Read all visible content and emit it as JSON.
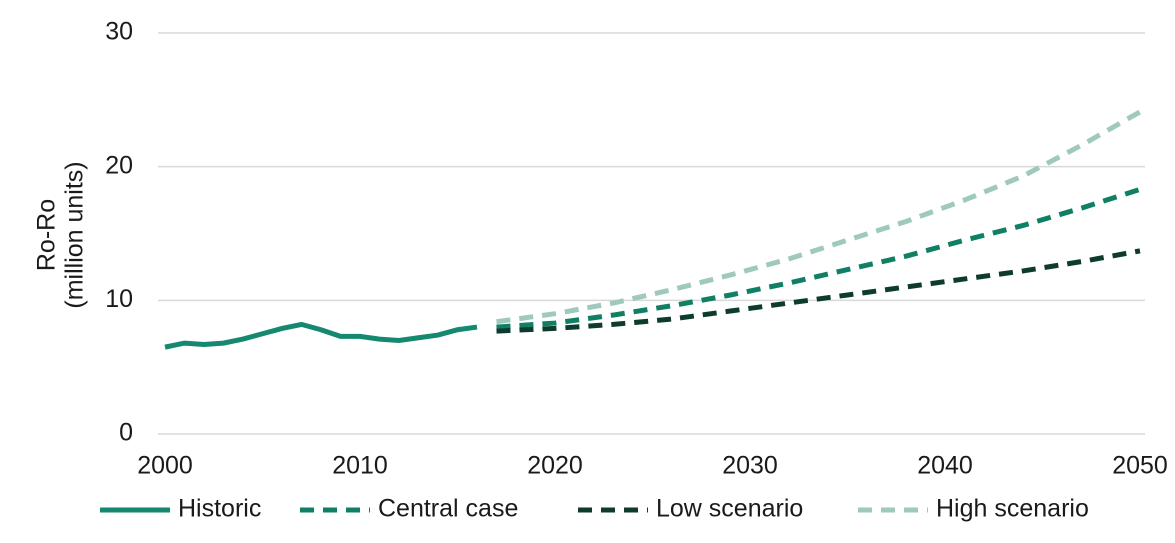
{
  "chart_data": {
    "type": "line",
    "ylabel": [
      "Ro-Ro",
      "(million units)"
    ],
    "xlim": [
      2000,
      2050
    ],
    "xticks": [
      2000,
      2010,
      2020,
      2030,
      2040,
      2050
    ],
    "ylim": [
      0,
      30
    ],
    "yticks": [
      0,
      10,
      20,
      30
    ],
    "grid": true,
    "legend": "bottom",
    "series": [
      {
        "name": "Historic",
        "color": "#14896f",
        "dashed": false,
        "x": [
          2000,
          2001,
          2002,
          2003,
          2004,
          2005,
          2006,
          2007,
          2008,
          2009,
          2010,
          2011,
          2012,
          2013,
          2014,
          2015,
          2016
        ],
        "values": [
          6.5,
          6.8,
          6.7,
          6.8,
          7.1,
          7.5,
          7.9,
          8.2,
          7.8,
          7.3,
          7.3,
          7.1,
          7.0,
          7.2,
          7.4,
          7.8,
          8.0
        ]
      },
      {
        "name": "Central case",
        "color": "#0f8065",
        "dashed": true,
        "x": [
          2017,
          2020,
          2023,
          2026,
          2029,
          2032,
          2035,
          2038,
          2041,
          2044,
          2047,
          2050
        ],
        "values": [
          8.0,
          8.3,
          8.9,
          9.6,
          10.4,
          11.3,
          12.3,
          13.3,
          14.5,
          15.6,
          16.9,
          18.3
        ]
      },
      {
        "name": "Low scenario",
        "color": "#0d3b2e",
        "dashed": true,
        "x": [
          2017,
          2020,
          2023,
          2026,
          2029,
          2032,
          2035,
          2038,
          2041,
          2044,
          2047,
          2050
        ],
        "values": [
          7.7,
          7.9,
          8.2,
          8.6,
          9.2,
          9.8,
          10.4,
          11.0,
          11.6,
          12.2,
          12.9,
          13.7
        ]
      },
      {
        "name": "High scenario",
        "color": "#9fc9bd",
        "dashed": true,
        "x": [
          2017,
          2020,
          2023,
          2026,
          2029,
          2032,
          2035,
          2038,
          2041,
          2044,
          2047,
          2050
        ],
        "values": [
          8.4,
          9.0,
          9.8,
          10.8,
          11.9,
          13.1,
          14.5,
          15.9,
          17.5,
          19.3,
          21.6,
          24.1
        ]
      }
    ]
  }
}
